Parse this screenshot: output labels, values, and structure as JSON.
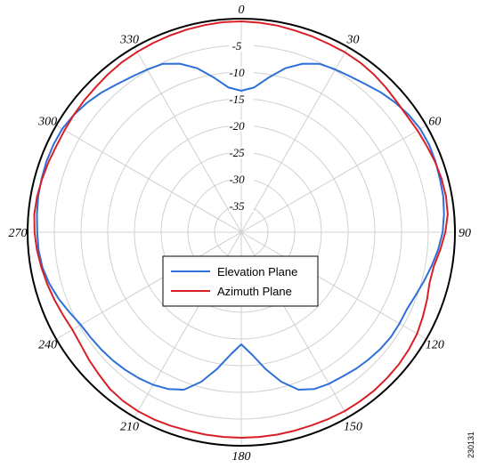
{
  "chart_data": {
    "type": "polar-line",
    "title": "",
    "angle_unit": "degrees",
    "angle_ticks": [
      {
        "angle": 0,
        "label": "0"
      },
      {
        "angle": 30,
        "label": "30"
      },
      {
        "angle": 60,
        "label": "60"
      },
      {
        "angle": 90,
        "label": "90"
      },
      {
        "angle": 120,
        "label": "120"
      },
      {
        "angle": 150,
        "label": "150"
      },
      {
        "angle": 180,
        "label": "180"
      },
      {
        "angle": 210,
        "label": "210"
      },
      {
        "angle": 240,
        "label": "240"
      },
      {
        "angle": 270,
        "label": "270"
      },
      {
        "angle": 300,
        "label": "300"
      },
      {
        "angle": 330,
        "label": "330"
      }
    ],
    "radial_range": [
      -40,
      0
    ],
    "radial_ticks": [
      {
        "value": -5,
        "label": "-5"
      },
      {
        "value": -10,
        "label": "-10"
      },
      {
        "value": -15,
        "label": "-15"
      },
      {
        "value": -20,
        "label": "-20"
      },
      {
        "value": -25,
        "label": "-25"
      },
      {
        "value": -30,
        "label": "-30"
      },
      {
        "value": -35,
        "label": "-35"
      }
    ],
    "grid": true,
    "legend_position": "center",
    "series": [
      {
        "name": "Elevation Plane",
        "color": "#2e6fd8",
        "points": [
          [
            0,
            -13.5
          ],
          [
            5,
            -12.8
          ],
          [
            10,
            -10.6
          ],
          [
            15,
            -8.2
          ],
          [
            20,
            -6.4
          ],
          [
            25,
            -5.2
          ],
          [
            30,
            -4.8
          ],
          [
            35,
            -4.4
          ],
          [
            40,
            -3.8
          ],
          [
            45,
            -3.0
          ],
          [
            50,
            -2.3
          ],
          [
            55,
            -1.7
          ],
          [
            60,
            -1.3
          ],
          [
            65,
            -1.2
          ],
          [
            70,
            -1.3
          ],
          [
            75,
            -1.5
          ],
          [
            80,
            -1.6
          ],
          [
            85,
            -1.9
          ],
          [
            90,
            -2.3
          ],
          [
            95,
            -3.0
          ],
          [
            100,
            -3.8
          ],
          [
            105,
            -4.6
          ],
          [
            110,
            -5.3
          ],
          [
            115,
            -5.8
          ],
          [
            120,
            -5.8
          ],
          [
            125,
            -5.8
          ],
          [
            130,
            -6.0
          ],
          [
            135,
            -6.3
          ],
          [
            140,
            -6.6
          ],
          [
            145,
            -7.0
          ],
          [
            150,
            -7.2
          ],
          [
            155,
            -7.6
          ],
          [
            160,
            -8.6
          ],
          [
            165,
            -11.0
          ],
          [
            170,
            -14.0
          ],
          [
            175,
            -17.0
          ],
          [
            180,
            -19.0
          ],
          [
            185,
            -17.0
          ],
          [
            190,
            -14.0
          ],
          [
            195,
            -11.0
          ],
          [
            200,
            -8.6
          ],
          [
            205,
            -7.6
          ],
          [
            210,
            -7.0
          ],
          [
            215,
            -6.6
          ],
          [
            220,
            -6.3
          ],
          [
            225,
            -6.0
          ],
          [
            230,
            -5.8
          ],
          [
            235,
            -5.6
          ],
          [
            240,
            -5.3
          ],
          [
            245,
            -4.5
          ],
          [
            250,
            -3.6
          ],
          [
            255,
            -2.8
          ],
          [
            260,
            -2.2
          ],
          [
            265,
            -1.9
          ],
          [
            270,
            -1.8
          ],
          [
            275,
            -1.6
          ],
          [
            280,
            -1.4
          ],
          [
            285,
            -1.3
          ],
          [
            290,
            -1.2
          ],
          [
            295,
            -1.2
          ],
          [
            300,
            -1.3
          ],
          [
            305,
            -1.7
          ],
          [
            310,
            -2.3
          ],
          [
            315,
            -3.0
          ],
          [
            320,
            -3.8
          ],
          [
            325,
            -4.4
          ],
          [
            330,
            -4.8
          ],
          [
            335,
            -5.2
          ],
          [
            340,
            -6.4
          ],
          [
            345,
            -8.2
          ],
          [
            350,
            -10.6
          ],
          [
            355,
            -12.8
          ]
        ]
      },
      {
        "name": "Azimuth Plane",
        "color": "#d81f26",
        "points": [
          [
            0,
            -0.5
          ],
          [
            5,
            -0.6
          ],
          [
            10,
            -0.7
          ],
          [
            15,
            -0.9
          ],
          [
            20,
            -1.0
          ],
          [
            25,
            -1.1
          ],
          [
            30,
            -1.1
          ],
          [
            35,
            -1.2
          ],
          [
            40,
            -1.4
          ],
          [
            45,
            -1.7
          ],
          [
            50,
            -2.0
          ],
          [
            55,
            -2.1
          ],
          [
            60,
            -1.9
          ],
          [
            65,
            -1.7
          ],
          [
            70,
            -1.4
          ],
          [
            75,
            -1.2
          ],
          [
            80,
            -1.1
          ],
          [
            85,
            -1.2
          ],
          [
            90,
            -1.8
          ],
          [
            95,
            -2.6
          ],
          [
            100,
            -3.4
          ],
          [
            105,
            -3.5
          ],
          [
            110,
            -3.0
          ],
          [
            115,
            -2.5
          ],
          [
            120,
            -2.0
          ],
          [
            125,
            -1.7
          ],
          [
            130,
            -1.5
          ],
          [
            135,
            -1.4
          ],
          [
            140,
            -1.3
          ],
          [
            145,
            -1.3
          ],
          [
            150,
            -1.3
          ],
          [
            155,
            -1.4
          ],
          [
            160,
            -1.5
          ],
          [
            165,
            -1.5
          ],
          [
            170,
            -1.5
          ],
          [
            175,
            -1.5
          ],
          [
            180,
            -1.5
          ],
          [
            185,
            -1.5
          ],
          [
            190,
            -1.5
          ],
          [
            195,
            -1.5
          ],
          [
            200,
            -1.4
          ],
          [
            205,
            -1.3
          ],
          [
            210,
            -1.3
          ],
          [
            215,
            -1.4
          ],
          [
            220,
            -1.7
          ],
          [
            225,
            -2.3
          ],
          [
            230,
            -2.8
          ],
          [
            235,
            -3.3
          ],
          [
            240,
            -3.5
          ],
          [
            245,
            -3.2
          ],
          [
            250,
            -2.8
          ],
          [
            255,
            -2.4
          ],
          [
            260,
            -2.0
          ],
          [
            265,
            -1.6
          ],
          [
            270,
            -1.3
          ],
          [
            275,
            -1.1
          ],
          [
            280,
            -1.2
          ],
          [
            285,
            -1.4
          ],
          [
            290,
            -1.6
          ],
          [
            295,
            -1.8
          ],
          [
            300,
            -1.8
          ],
          [
            305,
            -1.7
          ],
          [
            310,
            -1.6
          ],
          [
            315,
            -1.5
          ],
          [
            320,
            -1.3
          ],
          [
            325,
            -1.1
          ],
          [
            330,
            -1.0
          ],
          [
            335,
            -0.9
          ],
          [
            340,
            -0.8
          ],
          [
            345,
            -0.7
          ],
          [
            350,
            -0.6
          ],
          [
            355,
            -0.5
          ]
        ]
      }
    ],
    "legend": [
      {
        "label": "Elevation Plane",
        "color": "#2e6fd8"
      },
      {
        "label": "Azimuth Plane",
        "color": "#d81f26"
      }
    ]
  },
  "figure_id": "230131"
}
